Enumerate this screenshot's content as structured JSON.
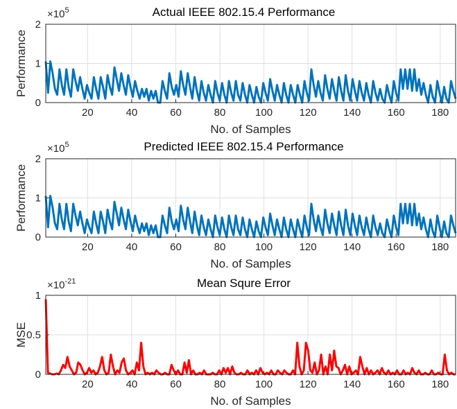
{
  "chart_data": [
    {
      "type": "line",
      "title": "Actual IEEE 802.15.4 Performance",
      "xlabel": "No. of Samples",
      "ylabel": "Performance",
      "exponent_base": "×10",
      "exponent_power": "5",
      "xlim": [
        1,
        187
      ],
      "ylim": [
        0,
        2
      ],
      "xticks": [
        20,
        40,
        60,
        80,
        100,
        120,
        140,
        160,
        180
      ],
      "yticks": [
        0,
        1,
        2
      ],
      "grid": true,
      "color": "#0072BD",
      "series": [
        {
          "values": [
            1.05,
            0.25,
            1.05,
            0.75,
            0.35,
            0.2,
            0.85,
            0.45,
            0.2,
            0.85,
            0.4,
            0.15,
            0.85,
            0.55,
            0.3,
            0.65,
            0.35,
            0.1,
            0.45,
            0.25,
            0.1,
            0.65,
            0.35,
            0.1,
            0.65,
            0.4,
            0.1,
            0.7,
            0.4,
            0.2,
            0.9,
            0.6,
            0.3,
            0.75,
            0.45,
            0.2,
            0.7,
            0.4,
            0.15,
            0.55,
            0.3,
            0.1,
            0.35,
            0.15,
            0.35,
            0.05,
            0.3,
            0.1,
            0.3,
            0.0,
            0.0,
            0.55,
            0.3,
            0.1,
            0.75,
            0.4,
            0.2,
            0.45,
            0.15,
            0.8,
            0.45,
            0.2,
            0.75,
            0.4,
            0.1,
            0.65,
            0.3,
            0.05,
            0.55,
            0.25,
            0.05,
            0.45,
            0.2,
            0.0,
            0.55,
            0.25,
            0.05,
            0.5,
            0.2,
            0.0,
            0.55,
            0.25,
            0.05,
            0.55,
            0.2,
            0.05,
            0.5,
            0.2,
            0.0,
            0.45,
            0.2,
            0.0,
            0.4,
            0.15,
            0.0,
            0.5,
            0.25,
            0.05,
            0.6,
            0.3,
            0.05,
            0.45,
            0.2,
            0.0,
            0.5,
            0.2,
            0.0,
            0.45,
            0.2,
            0.0,
            0.45,
            0.2,
            0.0,
            0.55,
            0.25,
            0.05,
            0.85,
            0.45,
            0.15,
            0.55,
            0.25,
            0.05,
            0.7,
            0.35,
            0.1,
            0.6,
            0.3,
            0.05,
            0.65,
            0.3,
            0.05,
            0.7,
            0.3,
            0.05,
            0.6,
            0.3,
            0.05,
            0.55,
            0.25,
            0.05,
            0.5,
            0.2,
            0.0,
            0.55,
            0.25,
            0.05,
            0.35,
            0.1,
            0.0,
            0.45,
            0.2,
            0.0,
            0.55,
            0.25,
            0.05,
            0.85,
            0.35,
            0.85,
            0.35,
            0.85,
            0.3,
            0.85,
            0.3,
            0.6,
            0.2,
            0.5,
            0.2,
            0.0,
            0.45,
            0.15,
            0.0,
            0.55,
            0.25,
            0.0,
            0.4,
            0.1,
            0.0,
            0.55,
            0.3,
            0.1
          ]
        }
      ]
    },
    {
      "type": "line",
      "title": "Predicted IEEE 802.15.4 Performance",
      "xlabel": "No. of Samples",
      "ylabel": "Performance",
      "exponent_base": "×10",
      "exponent_power": "5",
      "xlim": [
        1,
        187
      ],
      "ylim": [
        0,
        2
      ],
      "xticks": [
        20,
        40,
        60,
        80,
        100,
        120,
        140,
        160,
        180
      ],
      "yticks": [
        0,
        1,
        2
      ],
      "grid": true,
      "color": "#0072BD",
      "series": [
        {
          "values": [
            1.05,
            0.25,
            1.05,
            0.75,
            0.35,
            0.2,
            0.85,
            0.45,
            0.2,
            0.85,
            0.4,
            0.15,
            0.85,
            0.55,
            0.3,
            0.65,
            0.35,
            0.1,
            0.45,
            0.25,
            0.1,
            0.65,
            0.35,
            0.1,
            0.65,
            0.4,
            0.1,
            0.7,
            0.4,
            0.2,
            0.9,
            0.6,
            0.3,
            0.75,
            0.45,
            0.2,
            0.7,
            0.4,
            0.15,
            0.55,
            0.3,
            0.1,
            0.35,
            0.15,
            0.35,
            0.05,
            0.3,
            0.1,
            0.3,
            0.0,
            0.0,
            0.55,
            0.3,
            0.1,
            0.75,
            0.4,
            0.2,
            0.45,
            0.15,
            0.8,
            0.45,
            0.2,
            0.75,
            0.4,
            0.1,
            0.65,
            0.3,
            0.05,
            0.55,
            0.25,
            0.05,
            0.45,
            0.2,
            0.0,
            0.55,
            0.25,
            0.05,
            0.5,
            0.2,
            0.0,
            0.55,
            0.25,
            0.05,
            0.55,
            0.2,
            0.05,
            0.5,
            0.2,
            0.0,
            0.45,
            0.2,
            0.0,
            0.4,
            0.15,
            0.0,
            0.5,
            0.25,
            0.05,
            0.6,
            0.3,
            0.05,
            0.45,
            0.2,
            0.0,
            0.5,
            0.2,
            0.0,
            0.45,
            0.2,
            0.0,
            0.45,
            0.2,
            0.0,
            0.55,
            0.25,
            0.05,
            0.85,
            0.45,
            0.15,
            0.55,
            0.25,
            0.05,
            0.7,
            0.35,
            0.1,
            0.6,
            0.3,
            0.05,
            0.65,
            0.3,
            0.05,
            0.7,
            0.3,
            0.05,
            0.6,
            0.3,
            0.05,
            0.55,
            0.25,
            0.05,
            0.5,
            0.2,
            0.0,
            0.55,
            0.25,
            0.05,
            0.35,
            0.1,
            0.0,
            0.45,
            0.2,
            0.0,
            0.55,
            0.25,
            0.05,
            0.85,
            0.35,
            0.85,
            0.35,
            0.85,
            0.3,
            0.85,
            0.3,
            0.6,
            0.2,
            0.5,
            0.2,
            0.0,
            0.45,
            0.15,
            0.0,
            0.55,
            0.25,
            0.0,
            0.4,
            0.1,
            0.0,
            0.55,
            0.3,
            0.1
          ]
        }
      ]
    },
    {
      "type": "line",
      "title": "Mean Squre Error",
      "xlabel": "No. of Samples",
      "ylabel": "MSE",
      "exponent_base": "×10",
      "exponent_power": "-21",
      "xlim": [
        1,
        187
      ],
      "ylim": [
        0,
        1
      ],
      "xticks": [
        20,
        40,
        60,
        80,
        100,
        120,
        140,
        160,
        180
      ],
      "yticks": [
        0,
        0.5,
        1
      ],
      "ytick_labels": [
        "0",
        "0.5",
        "1"
      ],
      "grid": true,
      "color": "#FF0000",
      "series": [
        {
          "values": [
            0.95,
            0.02,
            0.01,
            0.0,
            0.0,
            0.01,
            0.0,
            0.05,
            0.12,
            0.08,
            0.22,
            0.1,
            0.05,
            0.0,
            0.02,
            0.15,
            0.12,
            0.05,
            0.0,
            0.02,
            0.08,
            0.02,
            0.05,
            0.0,
            0.02,
            0.1,
            0.22,
            0.05,
            0.0,
            0.02,
            0.25,
            0.1,
            0.0,
            0.05,
            0.02,
            0.15,
            0.2,
            0.05,
            0.0,
            0.02,
            0.05,
            0.0,
            0.15,
            0.05,
            0.4,
            0.1,
            0.0,
            0.02,
            0.0,
            0.02,
            0.0,
            0.05,
            0.02,
            0.0,
            0.0,
            0.02,
            0.0,
            0.0,
            0.12,
            0.05,
            0.0,
            0.05,
            0.0,
            0.0,
            0.15,
            0.02,
            0.18,
            0.0,
            0.05,
            0.0,
            0.0,
            0.02,
            0.0,
            0.05,
            0.0,
            0.0,
            0.0,
            0.02,
            0.0,
            0.0,
            0.05,
            0.0,
            0.08,
            0.02,
            0.08,
            0.0,
            0.1,
            0.02,
            0.0,
            0.0,
            0.02,
            0.0,
            0.0,
            0.05,
            0.0,
            0.02,
            0.0,
            0.05,
            0.0,
            0.08,
            0.02,
            0.0,
            0.02,
            0.0,
            0.05,
            0.0,
            0.0,
            0.05,
            0.02,
            0.0,
            0.05,
            0.02,
            0.0,
            0.0,
            0.05,
            0.0,
            0.4,
            0.1,
            0.0,
            0.05,
            0.4,
            0.3,
            0.05,
            0.02,
            0.15,
            0.0,
            0.05,
            0.25,
            0.0,
            0.1,
            0.0,
            0.25,
            0.05,
            0.3,
            0.1,
            0.08,
            0.0,
            0.05,
            0.12,
            0.0,
            0.1,
            0.0,
            0.02,
            0.05,
            0.0,
            0.22,
            0.1,
            0.0,
            0.08,
            0.0,
            0.05,
            0.0,
            0.02,
            0.05,
            0.0,
            0.08,
            0.02,
            0.0,
            0.05,
            0.0,
            0.02,
            0.0,
            0.05,
            0.0,
            0.0,
            0.05,
            0.0,
            0.02,
            0.0,
            0.08,
            0.02,
            0.0,
            0.05,
            0.0,
            0.0,
            0.02,
            0.0,
            0.0,
            0.05,
            0.0,
            0.0,
            0.02,
            0.0,
            0.0,
            0.25,
            0.05,
            0.0,
            0.02,
            0.0,
            0.0
          ]
        }
      ]
    }
  ]
}
